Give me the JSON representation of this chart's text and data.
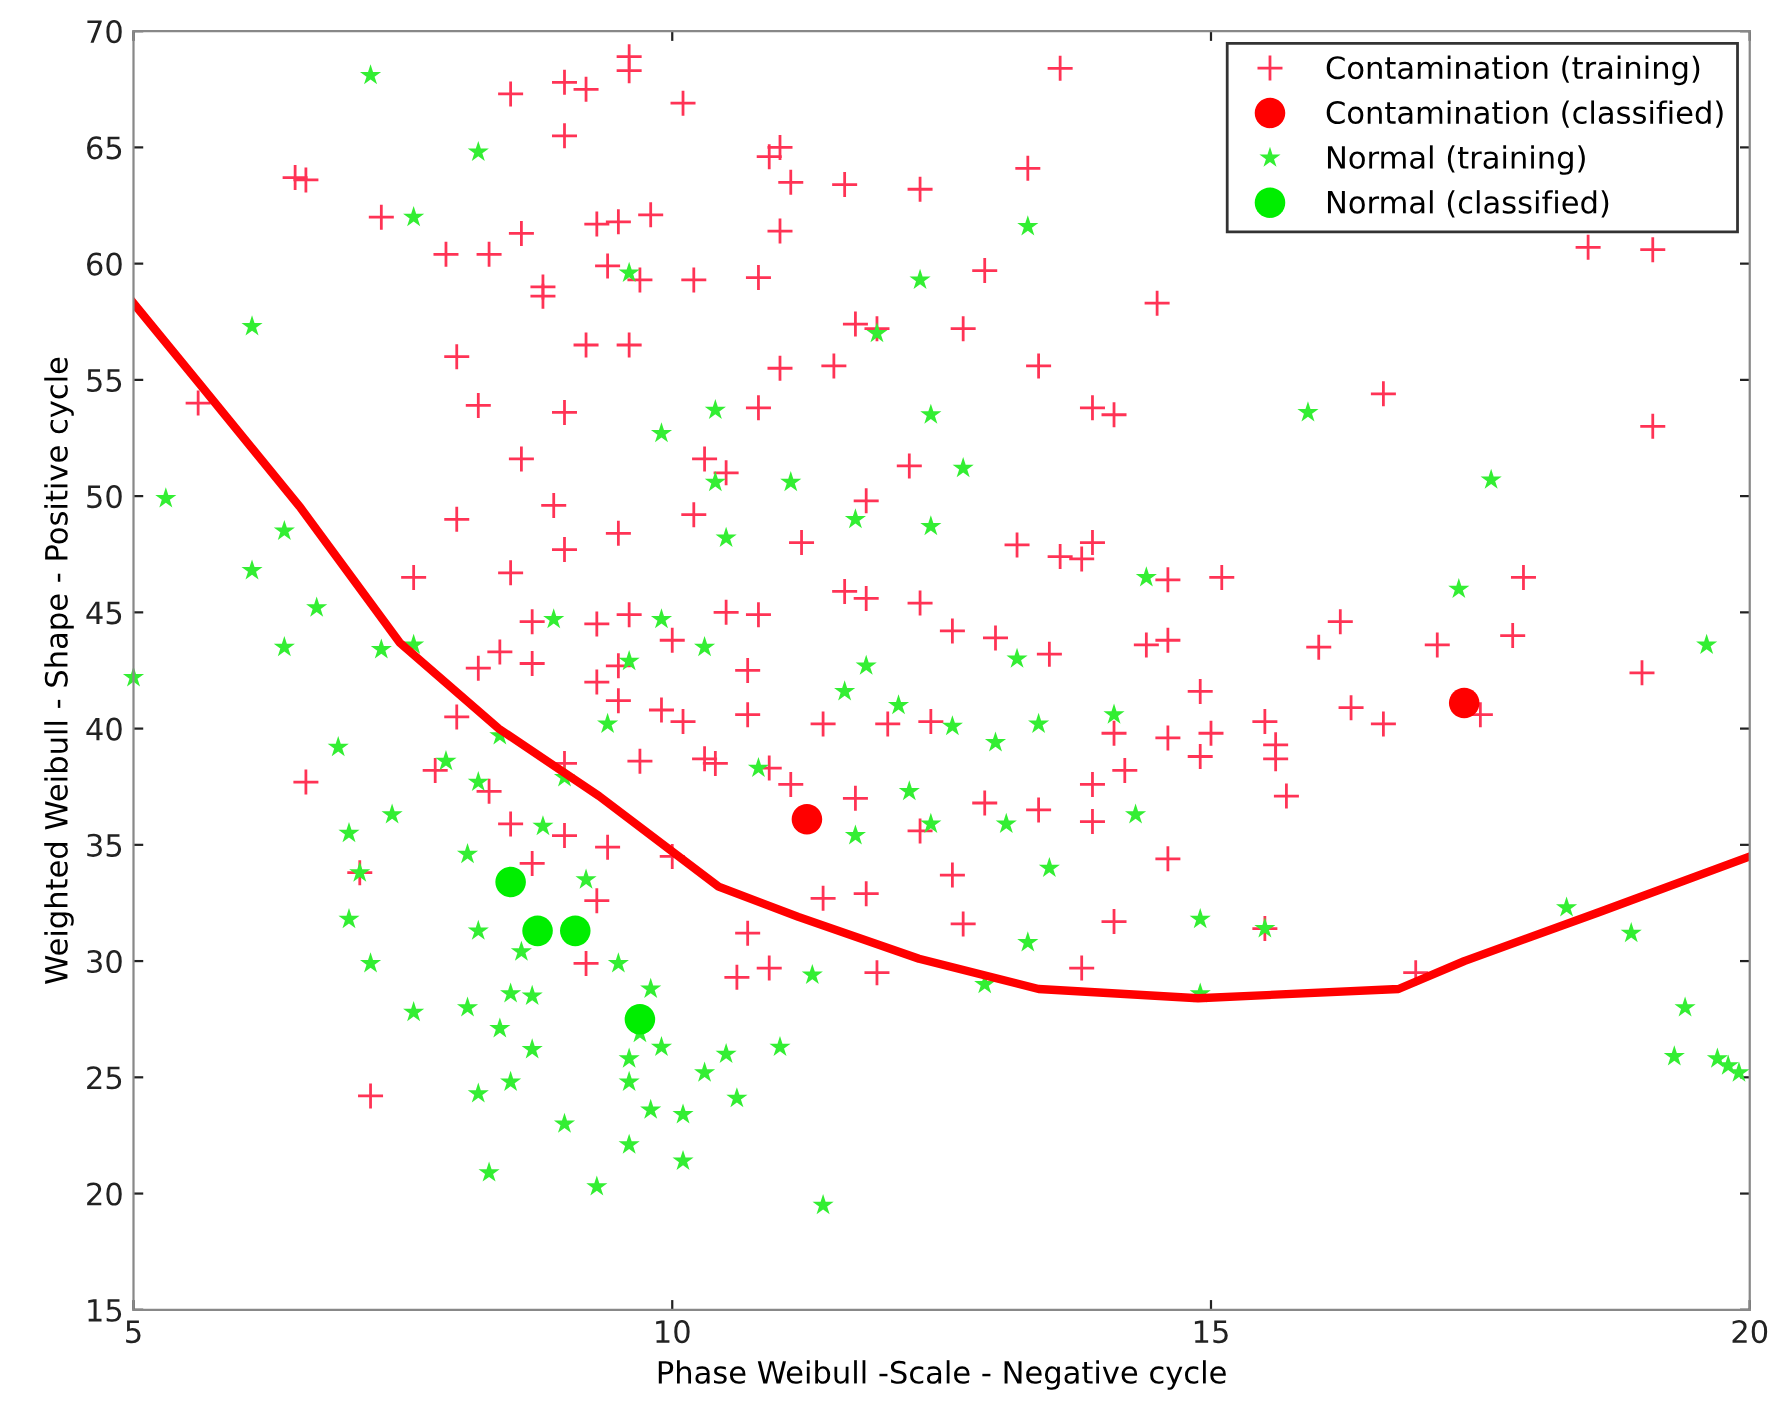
{
  "chart_data": {
    "type": "scatter",
    "xlabel": "Phase Weibull -Scale - Negative cycle",
    "ylabel": "Weighted Weibull - Shape - Positive cycle",
    "xlim": [
      5,
      20
    ],
    "ylim": [
      15,
      70
    ],
    "xticks": [
      5,
      10,
      15,
      20
    ],
    "yticks": [
      15,
      20,
      25,
      30,
      35,
      40,
      45,
      50,
      55,
      60,
      65,
      70
    ],
    "grid": false,
    "legend": "top right",
    "series": [
      {
        "name": "Contamination (training)",
        "marker": "cross",
        "color": "#ff3355",
        "x": [
          6.5,
          6.6,
          7.3,
          7.9,
          8.3,
          8.8,
          8.6,
          8.5,
          9.0,
          9.2,
          9.6,
          9.6,
          10.1,
          9.5,
          9.3,
          9.8,
          9.0,
          8.8,
          9.2,
          9.6,
          9.4,
          9.7,
          10.2,
          8.0,
          5.6,
          8.2,
          9.0,
          8.0,
          8.6,
          7.6,
          8.9,
          9.5,
          9.0,
          8.5,
          9.6,
          9.3,
          8.7,
          8.4,
          8.2,
          8.7,
          9.3,
          9.5,
          8.0,
          9.5,
          10.1,
          10.0,
          10.5,
          10.8,
          10.7,
          10.2,
          10.3,
          10.5,
          10.8,
          11.0,
          10.8,
          11.0,
          11.1,
          10.9,
          11.0,
          11.6,
          12.3,
          13.3,
          13.6,
          12.9,
          12.7,
          11.9,
          11.7,
          11.5,
          13.4,
          13.9,
          14.1,
          14.5,
          15.1,
          14.6,
          13.6,
          13.9,
          13.8,
          13.2,
          12.2,
          11.8,
          11.2,
          12.3,
          11.8,
          11.6,
          12.6,
          13.0,
          13.5,
          14.4,
          14.6,
          14.9,
          16.0,
          16.2,
          16.6,
          16.3,
          15.5,
          15.6,
          15.6,
          15.7,
          15.0,
          14.6,
          14.9,
          14.2,
          14.1,
          13.9,
          14.6,
          13.9,
          13.4,
          12.9,
          12.4,
          12.0,
          11.4,
          10.7,
          10.4,
          10.9,
          11.1,
          11.7,
          12.3,
          12.6,
          11.8,
          11.4,
          10.7,
          10.6,
          10.9,
          11.9,
          12.7,
          13.8,
          14.1,
          15.5,
          16.9,
          17.5,
          17.1,
          17.9,
          18.5,
          19.1,
          19.1,
          19.0,
          17.8,
          6.6,
          7.1,
          7.2,
          7.8,
          8.3,
          8.5,
          8.7,
          9.0,
          9.2,
          9.3,
          9.4,
          9.0,
          9.7,
          10.0,
          10.3,
          9.9,
          16.6
        ],
        "values": [
          63.7,
          63.6,
          62.0,
          60.4,
          60.4,
          59.0,
          61.3,
          67.3,
          67.8,
          67.5,
          68.9,
          68.3,
          66.9,
          61.8,
          61.7,
          62.1,
          65.5,
          58.6,
          56.5,
          56.5,
          59.9,
          59.3,
          59.3,
          56.0,
          54.0,
          53.9,
          53.6,
          49.0,
          51.6,
          46.5,
          49.6,
          48.4,
          47.7,
          46.7,
          44.9,
          44.5,
          44.6,
          43.3,
          42.6,
          42.8,
          42.0,
          42.7,
          40.5,
          41.2,
          40.3,
          43.8,
          45.0,
          44.9,
          42.5,
          49.2,
          51.6,
          51.0,
          53.8,
          55.5,
          59.4,
          61.4,
          63.5,
          64.6,
          65.0,
          63.4,
          63.2,
          64.1,
          68.4,
          59.7,
          57.2,
          57.2,
          57.4,
          55.6,
          55.6,
          53.8,
          53.5,
          58.3,
          46.5,
          46.4,
          47.4,
          48.0,
          47.3,
          47.9,
          51.3,
          49.8,
          48.0,
          45.4,
          45.6,
          45.9,
          44.2,
          43.9,
          43.2,
          43.6,
          43.8,
          41.6,
          43.5,
          44.6,
          40.2,
          40.9,
          40.3,
          39.3,
          38.7,
          37.1,
          39.8,
          39.6,
          38.8,
          38.2,
          39.8,
          36.0,
          34.4,
          37.6,
          36.5,
          36.8,
          40.3,
          40.2,
          40.2,
          40.6,
          38.5,
          38.3,
          37.6,
          37.0,
          35.6,
          33.7,
          32.9,
          32.7,
          31.2,
          29.3,
          29.7,
          29.5,
          31.6,
          29.7,
          31.7,
          31.4,
          29.5,
          40.6,
          43.6,
          46.5,
          60.7,
          60.6,
          53.0,
          42.4,
          44.0,
          37.7,
          33.8,
          24.2,
          38.2,
          37.3,
          35.9,
          34.2,
          35.4,
          29.9,
          32.6,
          34.9,
          38.5,
          38.6,
          34.5,
          38.7,
          40.8,
          54.4
        ]
      },
      {
        "name": "Contamination (classified)",
        "marker": "circle",
        "color": "#ff0000",
        "x": [
          11.25,
          17.35
        ],
        "values": [
          36.1,
          41.1
        ]
      },
      {
        "name": "Normal (training)",
        "marker": "star",
        "color": "#33ee33",
        "x": [
          7.2,
          7.6,
          8.2,
          9.6,
          6.1,
          5.3,
          6.4,
          6.1,
          7.3,
          6.7,
          6.4,
          5.0,
          7.6,
          6.9,
          7.0,
          7.1,
          7.0,
          7.2,
          7.4,
          7.9,
          8.2,
          8.4,
          8.1,
          7.6,
          8.2,
          8.6,
          8.5,
          8.1,
          8.7,
          8.4,
          8.7,
          8.2,
          8.5,
          8.3,
          9.0,
          9.6,
          9.6,
          9.8,
          9.9,
          10.1,
          10.3,
          10.6,
          9.6,
          10.1,
          9.3,
          9.5,
          9.8,
          9.7,
          10.5,
          11.0,
          11.4,
          11.3,
          10.8,
          10.3,
          10.5,
          10.4,
          9.9,
          10.4,
          11.1,
          11.7,
          11.9,
          12.3,
          12.4,
          12.7,
          12.4,
          13.2,
          13.4,
          14.1,
          14.3,
          13.0,
          12.6,
          11.8,
          11.6,
          12.1,
          12.2,
          12.4,
          11.7,
          13.1,
          13.5,
          13.3,
          14.9,
          12.9,
          13.3,
          14.4,
          15.9,
          17.6,
          17.3,
          18.3,
          18.9,
          19.4,
          19.3,
          19.7,
          19.8,
          19.9,
          19.6,
          15.5,
          14.9,
          9.2,
          8.8,
          9.0,
          9.4,
          9.6,
          9.9,
          8.9
        ],
        "values": [
          68.1,
          62.0,
          64.8,
          59.6,
          57.3,
          49.9,
          48.5,
          46.8,
          43.4,
          45.2,
          43.5,
          42.2,
          43.6,
          39.2,
          35.5,
          33.8,
          31.8,
          29.9,
          36.3,
          38.6,
          37.7,
          39.7,
          34.6,
          27.8,
          31.3,
          30.4,
          28.6,
          28.0,
          28.5,
          27.1,
          26.2,
          24.3,
          24.8,
          20.9,
          23.0,
          25.8,
          24.8,
          23.6,
          26.3,
          23.4,
          25.2,
          24.1,
          22.1,
          21.4,
          20.3,
          29.9,
          28.8,
          26.9,
          26.0,
          26.3,
          19.5,
          29.4,
          38.3,
          43.5,
          48.2,
          50.6,
          52.7,
          53.7,
          50.6,
          49.0,
          57.0,
          59.3,
          53.5,
          51.2,
          48.7,
          43.0,
          40.2,
          40.6,
          36.3,
          39.4,
          40.1,
          42.7,
          41.6,
          41.0,
          37.3,
          35.9,
          35.4,
          35.9,
          34.0,
          30.8,
          31.8,
          29.0,
          61.6,
          46.5,
          53.6,
          50.7,
          46.0,
          32.3,
          31.2,
          28.0,
          25.9,
          25.8,
          25.5,
          25.2,
          43.6,
          31.4,
          28.6,
          33.5,
          35.8,
          37.9,
          40.2,
          42.9,
          44.7,
          44.7
        ]
      },
      {
        "name": "Normal (classified)",
        "marker": "circle",
        "color": "#00ee00",
        "x": [
          8.5,
          8.75,
          9.1,
          9.7
        ],
        "values": [
          33.4,
          31.3,
          31.3,
          27.5
        ]
      },
      {
        "type": "line",
        "color": "#ff0000",
        "line_style": "solid",
        "x": [
          5,
          5.6,
          6.55,
          7.47,
          8.39,
          9.32,
          10.43,
          11.17,
          12.29,
          13.4,
          14.88,
          16.74,
          17.35,
          18.6,
          20
        ],
        "values": [
          58.3,
          54.9,
          49.5,
          43.7,
          40.0,
          37.1,
          33.2,
          31.9,
          30.1,
          28.8,
          28.4,
          28.8,
          30.0,
          32.1,
          34.5
        ]
      }
    ]
  }
}
